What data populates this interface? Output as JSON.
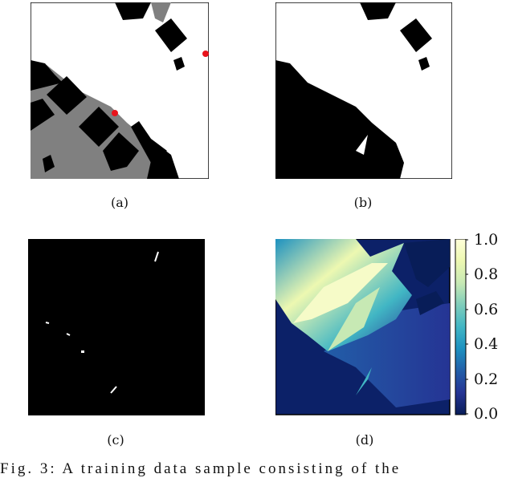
{
  "subfigures": [
    {
      "label": "(a)"
    },
    {
      "label": "(b)"
    },
    {
      "label": "(c)"
    },
    {
      "label": "(d)"
    }
  ],
  "colorbar": {
    "colormap": "YlGnBu",
    "ticks": [
      "1.0",
      "0.8",
      "0.6",
      "0.4",
      "0.2",
      "0.0"
    ],
    "range": [
      0.0,
      1.0
    ],
    "colors": [
      "#081d58",
      "#253494",
      "#225ea8",
      "#1d91c0",
      "#41b6c4",
      "#7fcdbb",
      "#c7e9b4",
      "#edf8b1",
      "#ffffd9"
    ]
  },
  "markers": {
    "color": "#e8131b"
  },
  "caption": "Fig. 3: A training data sample consisting of the"
}
